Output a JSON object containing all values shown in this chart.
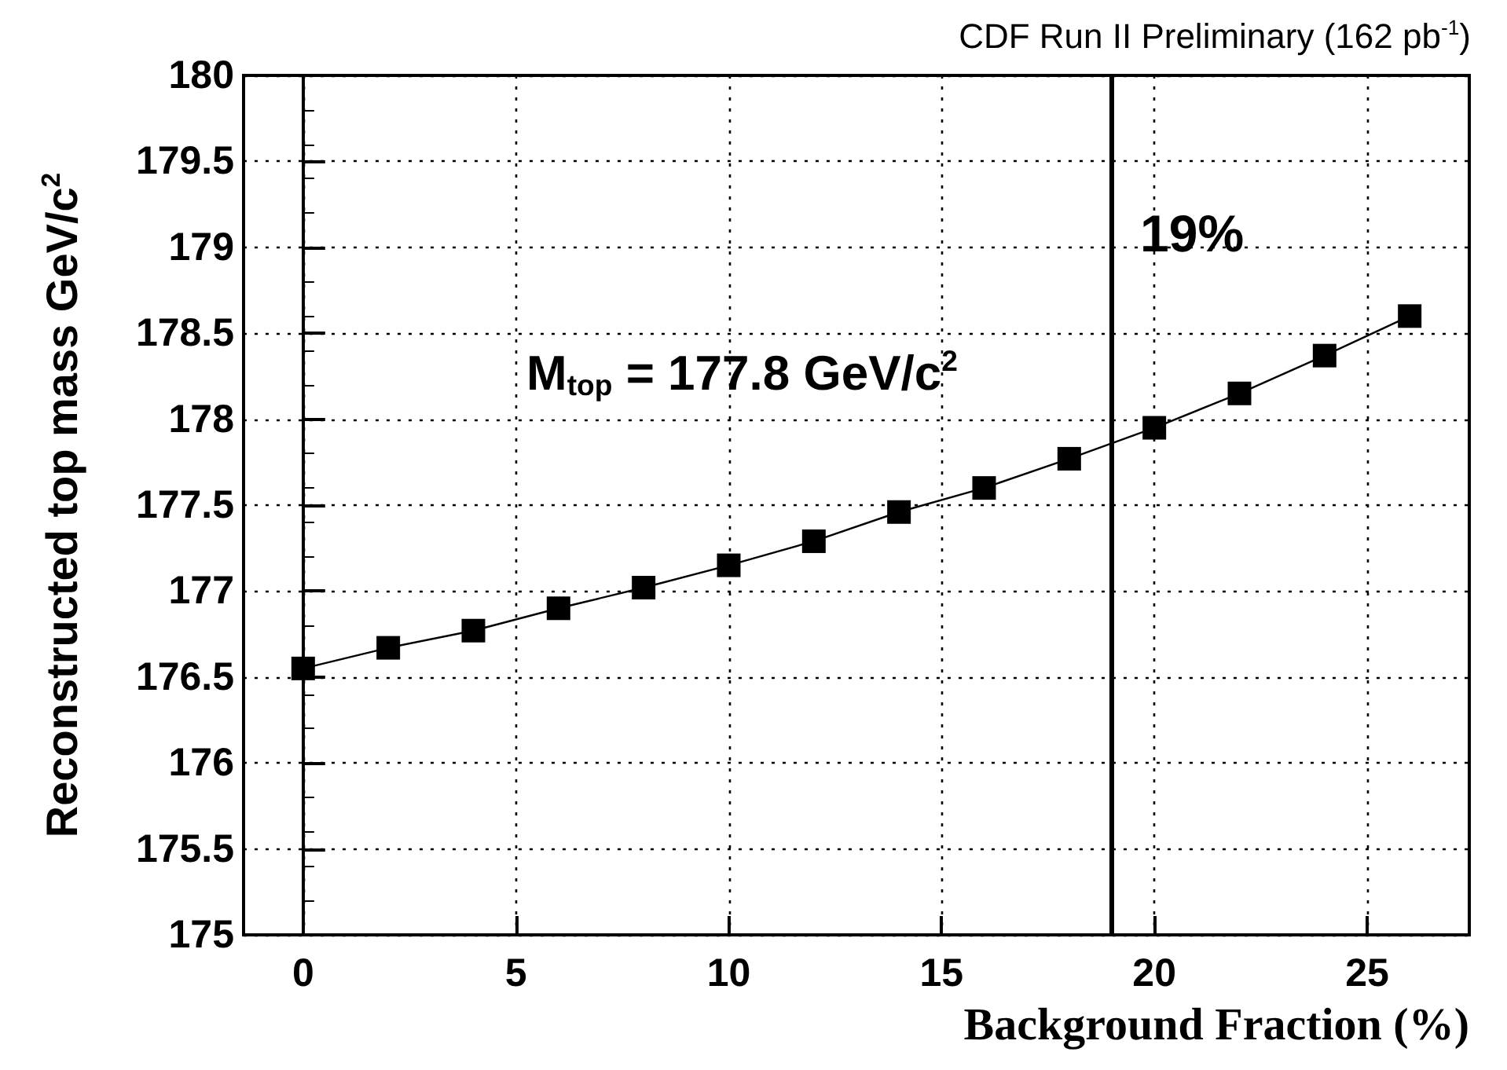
{
  "chart_data": {
    "type": "line",
    "title": "CDF Run II Preliminary (162 pb$^{-1}$)",
    "xlabel": "Background Fraction (%)",
    "ylabel": "Reconstructed top mass GeV/c$^{2}$",
    "annotations": [
      "M$_{top}$ = 177.8 GeV/c$^{2}$"
    ],
    "x": [
      0,
      2,
      4,
      6,
      8,
      10,
      12,
      14,
      16,
      18,
      20,
      22,
      24,
      26
    ],
    "series": [
      {
        "color": "#000000",
        "values": [
          176.55,
          176.67,
          176.77,
          176.9,
          177.02,
          177.15,
          177.29,
          177.46,
          177.6,
          177.77,
          177.95,
          178.15,
          178.37,
          178.6
        ]
      }
    ],
    "xlim": [
      -1.4,
      27.4
    ],
    "xticks": [
      0,
      5,
      10,
      15,
      20,
      25
    ],
    "ylim": [
      175,
      180
    ],
    "yticks": [
      175,
      175.5,
      176,
      176.5,
      177,
      177.5,
      178,
      178.5,
      179,
      179.5,
      180
    ],
    "ref_lines": [
      {
        "axis": "x",
        "value": 19,
        "label": "19%",
        "color": "#000000"
      }
    ],
    "grid": true,
    "marker": "square",
    "line_style": "solid"
  }
}
